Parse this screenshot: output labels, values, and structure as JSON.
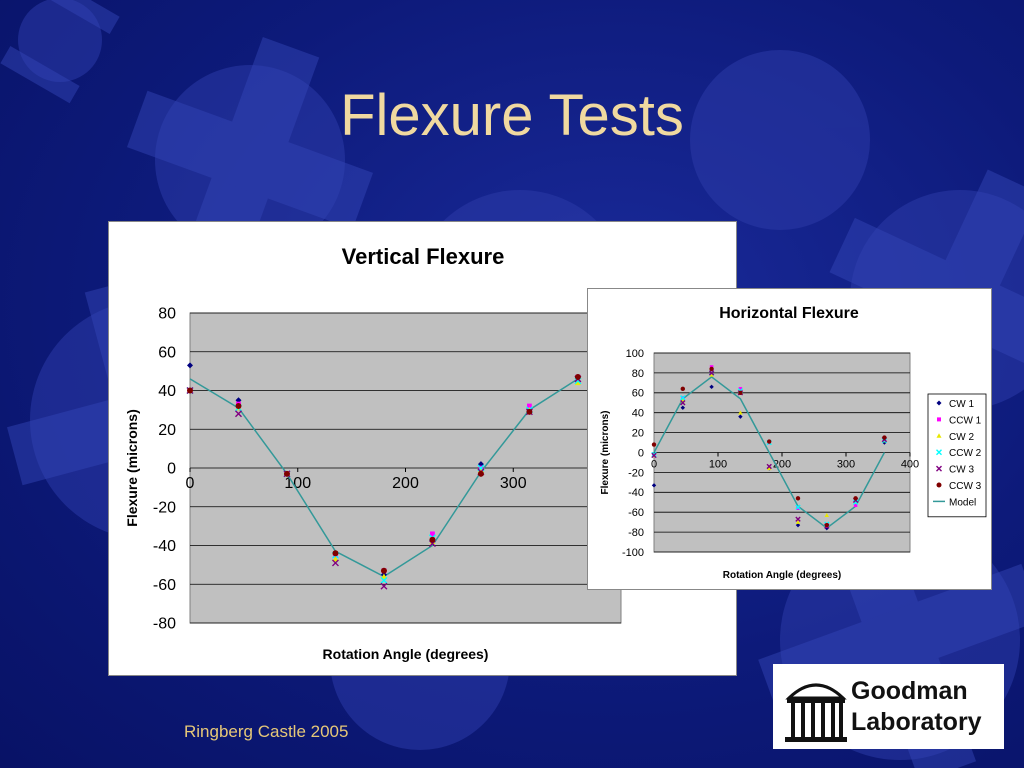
{
  "slide": {
    "title": "Flexure Tests",
    "footer": "Ringberg Castle 2005"
  },
  "logo": {
    "line1": "Goodman",
    "line2": "Laboratory"
  },
  "chart_data": [
    {
      "type": "scatter",
      "title": "Vertical Flexure",
      "xlabel": "Rotation Angle (degrees)",
      "ylabel": "Flexure (microns)",
      "xlim": [
        0,
        400
      ],
      "ylim": [
        -80,
        80
      ],
      "xticks": [
        0,
        100,
        200,
        300
      ],
      "yticks": [
        80,
        60,
        40,
        20,
        0,
        -20,
        -40,
        -60,
        -80
      ],
      "plot_bg": "#c0c0c0",
      "grid": "horizontal",
      "series": [
        {
          "name": "CW 1",
          "color": "#000080",
          "marker": "diamond",
          "x": [
            0,
            45,
            90,
            135,
            180,
            225,
            270,
            315,
            360
          ],
          "y": [
            53,
            35,
            -3,
            -44,
            -55,
            -37,
            2,
            30,
            47
          ]
        },
        {
          "name": "CCW 1",
          "color": "#ff00ff",
          "marker": "square",
          "x": [
            0,
            45,
            90,
            135,
            180,
            225,
            270,
            315,
            360
          ],
          "y": [
            40,
            33,
            -3,
            -45,
            -53,
            -34,
            0,
            32,
            47
          ]
        },
        {
          "name": "CW 2",
          "color": "#e8e800",
          "marker": "triangle",
          "x": [
            0,
            45,
            90,
            135,
            180,
            225,
            270,
            315,
            360
          ],
          "y": [
            40,
            31,
            -3,
            -47,
            -56,
            -38,
            -1,
            30,
            44
          ]
        },
        {
          "name": "CCW 2",
          "color": "#00ffff",
          "marker": "x",
          "x": [
            0,
            45,
            90,
            135,
            180,
            225,
            270,
            315,
            360
          ],
          "y": [
            40,
            31,
            -3,
            -45,
            -58,
            -36,
            0,
            30,
            45
          ]
        },
        {
          "name": "CW 3",
          "color": "#800080",
          "marker": "x",
          "x": [
            0,
            45,
            90,
            135,
            180,
            225,
            270,
            315,
            360
          ],
          "y": [
            40,
            28,
            -3,
            -49,
            -61,
            -39,
            -2,
            29,
            46
          ]
        },
        {
          "name": "CCW 3",
          "color": "#800000",
          "marker": "circle",
          "x": [
            0,
            45,
            90,
            135,
            180,
            225,
            270,
            315,
            360
          ],
          "y": [
            40,
            32,
            -3,
            -44,
            -53,
            -37,
            -3,
            29,
            47
          ]
        },
        {
          "name": "Model",
          "color": "#339999",
          "line": true,
          "x": [
            0,
            45,
            90,
            135,
            180,
            225,
            270,
            315,
            360
          ],
          "y": [
            46,
            31,
            -3,
            -43,
            -56,
            -40,
            -2,
            30,
            46
          ]
        }
      ]
    },
    {
      "type": "scatter",
      "title": "Horizontal Flexure",
      "xlabel": "Rotation Angle (degrees)",
      "ylabel": "Flexure (microns)",
      "xlim": [
        0,
        400
      ],
      "ylim": [
        -100,
        100
      ],
      "xticks": [
        0,
        100,
        200,
        300,
        400
      ],
      "yticks": [
        100,
        80,
        60,
        40,
        20,
        0,
        -20,
        -40,
        -60,
        -80,
        -100
      ],
      "plot_bg": "#c0c0c0",
      "grid": "horizontal",
      "legend_position": "right",
      "series": [
        {
          "name": "CW 1",
          "color": "#000080",
          "marker": "diamond",
          "x": [
            0,
            45,
            90,
            135,
            180,
            225,
            270,
            315,
            360
          ],
          "y": [
            -33,
            45,
            66,
            36,
            -16,
            -73,
            -76,
            -48,
            10
          ]
        },
        {
          "name": "CCW 1",
          "color": "#ff00ff",
          "marker": "square",
          "x": [
            0,
            45,
            90,
            135,
            180,
            225,
            270,
            315,
            360
          ],
          "y": [
            -3,
            55,
            86,
            64,
            10,
            -56,
            -74,
            -53,
            14
          ]
        },
        {
          "name": "CW 2",
          "color": "#e8e800",
          "marker": "triangle",
          "x": [
            0,
            45,
            90,
            135,
            180,
            225,
            270,
            315,
            360
          ],
          "y": [
            -3,
            52,
            78,
            40,
            -16,
            -70,
            -63,
            -50,
            12
          ]
        },
        {
          "name": "CCW 2",
          "color": "#00ffff",
          "marker": "x",
          "x": [
            0,
            45,
            90,
            135,
            180,
            225,
            270,
            315,
            360
          ],
          "y": [
            -2,
            55,
            80,
            62,
            10,
            -55,
            -72,
            -50,
            12
          ]
        },
        {
          "name": "CW 3",
          "color": "#800080",
          "marker": "x",
          "x": [
            0,
            45,
            90,
            135,
            180,
            225,
            270,
            315,
            360
          ],
          "y": [
            -3,
            50,
            80,
            60,
            -14,
            -67,
            -74,
            -48,
            13
          ]
        },
        {
          "name": "CCW 3",
          "color": "#800000",
          "marker": "circle",
          "x": [
            0,
            45,
            90,
            135,
            180,
            225,
            270,
            315,
            360
          ],
          "y": [
            8,
            64,
            84,
            60,
            11,
            -46,
            -73,
            -46,
            15
          ]
        },
        {
          "name": "Model",
          "color": "#339999",
          "line": true,
          "x": [
            0,
            45,
            90,
            135,
            180,
            225,
            270,
            315,
            360
          ],
          "y": [
            0,
            54,
            76,
            54,
            0,
            -54,
            -76,
            -54,
            0
          ]
        }
      ]
    }
  ]
}
